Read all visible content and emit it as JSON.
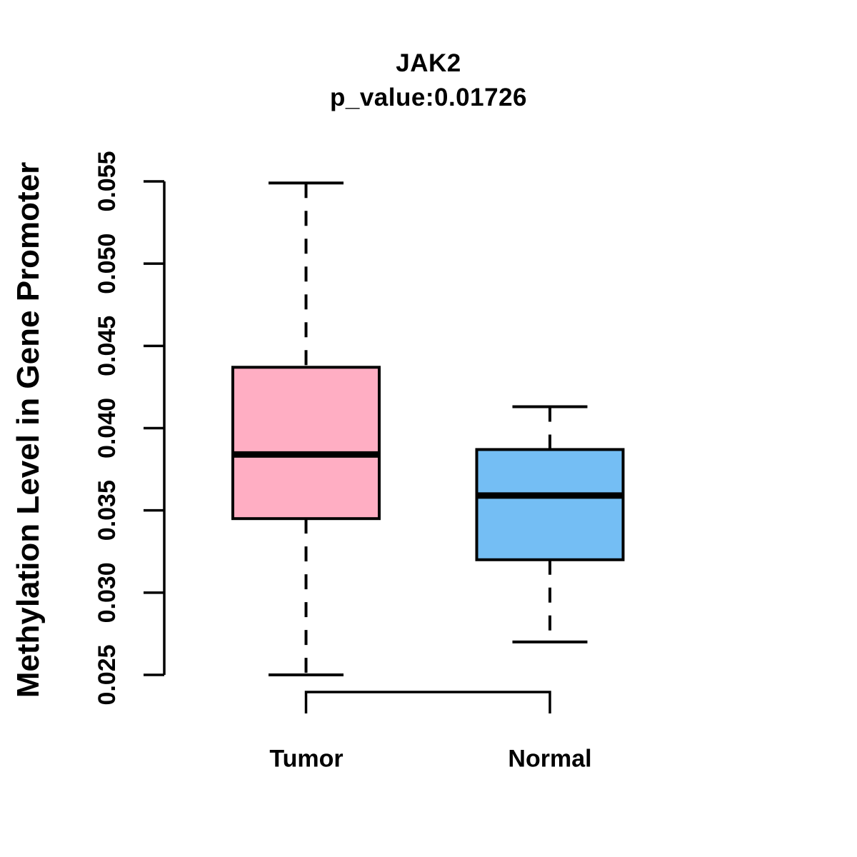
{
  "chart_data": {
    "type": "boxplot",
    "title": "JAK2",
    "subtitle": "p_value:0.01726",
    "p_value": "0.01726",
    "ylabel": "Methylation Level in Gene Promoter",
    "xlabel": "",
    "ylim": [
      0.025,
      0.055
    ],
    "grid": false,
    "legend": null,
    "axis_color": "#000000",
    "y_ticks": [
      {
        "value": 0.025,
        "label": "0.025"
      },
      {
        "value": 0.03,
        "label": "0.030"
      },
      {
        "value": 0.035,
        "label": "0.035"
      },
      {
        "value": 0.04,
        "label": "0.040"
      },
      {
        "value": 0.045,
        "label": "0.045"
      },
      {
        "value": 0.05,
        "label": "0.050"
      },
      {
        "value": 0.055,
        "label": "0.055"
      }
    ],
    "groups": [
      {
        "label": "Tumor",
        "color": "#FFAEC3",
        "stats": {
          "min": 0.025,
          "q1": 0.0345,
          "median": 0.0384,
          "q3": 0.0437,
          "max": 0.0549
        }
      },
      {
        "label": "Normal",
        "color": "#74BEF4",
        "stats": {
          "min": 0.027,
          "q1": 0.032,
          "median": 0.0359,
          "q3": 0.0387,
          "max": 0.0413
        }
      }
    ]
  }
}
